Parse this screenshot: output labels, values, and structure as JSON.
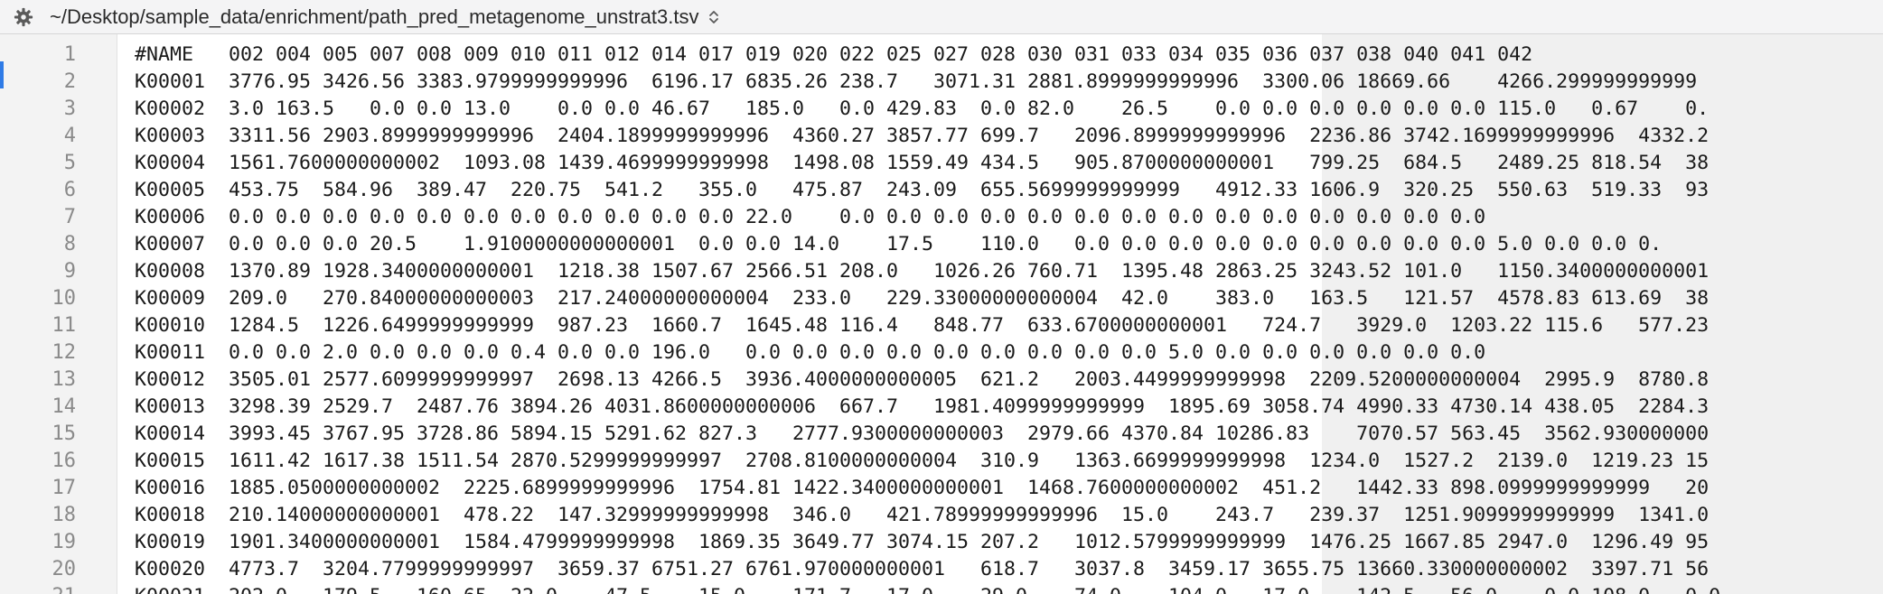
{
  "path_bar": {
    "path": "~/Desktop/sample_data/enrichment/path_pred_metagenome_unstrat3.tsv"
  },
  "lines": [
    {
      "num": "1",
      "text": "#NAME\t002 004 005 007 008 009 010 011 012 014 017 019 020 022 025 027 028 030 031 033 034 035 036 037 038 040 041 042"
    },
    {
      "num": "2",
      "text": "K00001\t3776.95 3426.56 3383.9799999999996  6196.17 6835.26 238.7   3071.31 2881.8999999999996  3300.06 18669.66    4266.299999999999"
    },
    {
      "num": "3",
      "text": "K00002\t3.0 163.5   0.0 0.0 13.0    0.0 0.0 46.67   185.0   0.0 429.83  0.0 82.0    26.5    0.0 0.0 0.0 0.0 0.0 0.0 115.0   0.67    0."
    },
    {
      "num": "4",
      "text": "K00003\t3311.56 2903.8999999999996  2404.1899999999996  4360.27 3857.77 699.7   2096.8999999999996  2236.86 3742.1699999999996  4332.2"
    },
    {
      "num": "5",
      "text": "K00004\t1561.7600000000002  1093.08 1439.4699999999998  1498.08 1559.49 434.5   905.8700000000001   799.25  684.5   2489.25 818.54  38"
    },
    {
      "num": "6",
      "text": "K00005\t453.75  584.96  389.47  220.75  541.2   355.0   475.87  243.09  655.5699999999999   4912.33 1606.9  320.25  550.63  519.33  93"
    },
    {
      "num": "7",
      "text": "K00006\t0.0 0.0 0.0 0.0 0.0 0.0 0.0 0.0 0.0 0.0 0.0 22.0    0.0 0.0 0.0 0.0 0.0 0.0 0.0 0.0 0.0 0.0 0.0 0.0 0.0 0.0"
    },
    {
      "num": "8",
      "text": "K00007\t0.0 0.0 0.0 20.5    1.9100000000000001  0.0 0.0 14.0    17.5    110.0   0.0 0.0 0.0 0.0 0.0 0.0 0.0 0.0 0.0 5.0 0.0 0.0 0."
    },
    {
      "num": "9",
      "text": "K00008\t1370.89 1928.3400000000001  1218.38 1507.67 2566.51 208.0   1026.26 760.71  1395.48 2863.25 3243.52 101.0   1150.3400000000001"
    },
    {
      "num": "10",
      "text": "K00009\t209.0   270.84000000000003  217.24000000000004  233.0   229.33000000000004  42.0    383.0   163.5   121.57  4578.83 613.69  38"
    },
    {
      "num": "11",
      "text": "K00010\t1284.5  1226.6499999999999  987.23  1660.7  1645.48 116.4   848.77  633.6700000000001   724.7   3929.0  1203.22 115.6   577.23"
    },
    {
      "num": "12",
      "text": "K00011\t0.0 0.0 2.0 0.0 0.0 0.0 0.4 0.0 0.0 196.0   0.0 0.0 0.0 0.0 0.0 0.0 0.0 0.0 0.0 5.0 0.0 0.0 0.0 0.0 0.0 0.0"
    },
    {
      "num": "13",
      "text": "K00012\t3505.01 2577.6099999999997  2698.13 4266.5  3936.4000000000005  621.2   2003.4499999999998  2209.5200000000004  2995.9  8780.8"
    },
    {
      "num": "14",
      "text": "K00013\t3298.39 2529.7  2487.76 3894.26 4031.8600000000006  667.7   1981.4099999999999  1895.69 3058.74 4990.33 4730.14 438.05  2284.3"
    },
    {
      "num": "15",
      "text": "K00014\t3993.45 3767.95 3728.86 5894.15 5291.62 827.3   2777.9300000000003  2979.66 4370.84 10286.83    7070.57 563.45  3562.930000000"
    },
    {
      "num": "16",
      "text": "K00015\t1611.42 1617.38 1511.54 2870.5299999999997  2708.8100000000004  310.9   1363.6699999999998  1234.0  1527.2  2139.0  1219.23 15"
    },
    {
      "num": "17",
      "text": "K00016\t1885.0500000000002  2225.6899999999996  1754.81 1422.3400000000001  1468.7600000000002  451.2   1442.33 898.0999999999999   20"
    },
    {
      "num": "18",
      "text": "K00018\t210.14000000000001  478.22  147.32999999999998  346.0   421.78999999999996  15.0    243.7   239.37  1251.9099999999999  1341.0"
    },
    {
      "num": "19",
      "text": "K00019\t1901.3400000000001  1584.4799999999998  1869.35 3649.77 3074.15 207.2   1012.5799999999999  1476.25 1667.85 2947.0  1296.49 95"
    },
    {
      "num": "20",
      "text": "K00020\t4773.7  3204.7799999999997  3659.37 6751.27 6761.970000000001   618.7   3037.8  3459.17 3655.75 13660.330000000002  3397.71 56"
    },
    {
      "num": "21",
      "text": "K00021\t202.0   179.5   160.65  22.0    47.5    15.0    171.7   17.0    29.0    74.0    104.0   17.0    142.5   56.0    0.0 108.0   0.0"
    }
  ],
  "colors": {
    "toolbar_bg": "#f4f4f5",
    "gutter_bg": "#f3f3f3",
    "current_line_marker": "#2f7be6"
  },
  "icons": {
    "settings": "gear-icon",
    "path_menu": "chevron-updown-icon"
  }
}
